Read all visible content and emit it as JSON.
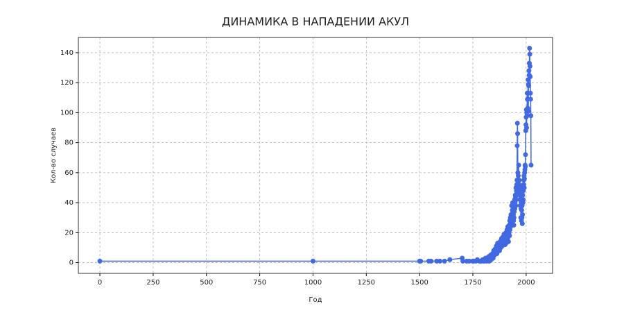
{
  "chart_data": {
    "type": "line",
    "title": "ДИНАМИКА В НАПАДЕНИИ АКУЛ",
    "x_label": "Год",
    "y_label": "Кол-во случаев",
    "color": "#4169e1",
    "grid": true,
    "markers": true,
    "x": [
      0,
      1000,
      1500,
      1505,
      1543,
      1554,
      1580,
      1595,
      1617,
      1642,
      1700,
      1703,
      1721,
      1733,
      1749,
      1755,
      1764,
      1771,
      1779,
      1785,
      1791,
      1796,
      1800,
      1803,
      1806,
      1809,
      1812,
      1815,
      1818,
      1821,
      1824,
      1827,
      1830,
      1833,
      1836,
      1839,
      1842,
      1845,
      1848,
      1851,
      1854,
      1857,
      1860,
      1863,
      1866,
      1869,
      1872,
      1875,
      1878,
      1881,
      1884,
      1887,
      1890,
      1893,
      1896,
      1898,
      1900,
      1901,
      1902,
      1903,
      1904,
      1905,
      1906,
      1907,
      1908,
      1909,
      1910,
      1911,
      1912,
      1913,
      1914,
      1915,
      1916,
      1917,
      1918,
      1919,
      1920,
      1921,
      1922,
      1923,
      1924,
      1925,
      1926,
      1927,
      1928,
      1929,
      1930,
      1931,
      1932,
      1933,
      1934,
      1935,
      1936,
      1937,
      1938,
      1939,
      1940,
      1941,
      1942,
      1943,
      1944,
      1945,
      1946,
      1947,
      1948,
      1949,
      1950,
      1951,
      1952,
      1953,
      1954,
      1955,
      1956,
      1957,
      1958,
      1959,
      1960,
      1961,
      1962,
      1963,
      1964,
      1965,
      1966,
      1967,
      1968,
      1969,
      1970,
      1971,
      1972,
      1973,
      1974,
      1975,
      1976,
      1977,
      1978,
      1979,
      1980,
      1981,
      1982,
      1983,
      1984,
      1985,
      1986,
      1987,
      1988,
      1989,
      1990,
      1991,
      1992,
      1993,
      1994,
      1995,
      1996,
      1997,
      1998,
      1999,
      2000,
      2001,
      2002,
      2003,
      2004,
      2005,
      2006,
      2007,
      2008,
      2009,
      2010,
      2011,
      2012,
      2013,
      2014,
      2015,
      2016,
      2017,
      2018,
      2019,
      2020,
      2021,
      2022,
      2023
    ],
    "values": [
      1,
      1,
      1,
      1,
      1,
      1,
      1,
      1,
      1,
      2,
      3,
      1,
      1,
      1,
      1,
      1,
      1,
      2,
      1,
      1,
      1,
      2,
      1,
      2,
      1,
      3,
      2,
      1,
      3,
      2,
      4,
      1,
      3,
      5,
      2,
      4,
      6,
      3,
      8,
      5,
      9,
      7,
      11,
      6,
      13,
      9,
      12,
      8,
      14,
      10,
      16,
      11,
      17,
      13,
      19,
      14,
      15,
      12,
      18,
      14,
      16,
      20,
      13,
      17,
      19,
      15,
      22,
      18,
      20,
      16,
      24,
      17,
      21,
      14,
      19,
      23,
      20,
      25,
      18,
      28,
      22,
      26,
      30,
      24,
      27,
      32,
      29,
      26,
      38,
      31,
      28,
      35,
      33,
      40,
      30,
      36,
      32,
      28,
      25,
      30,
      34,
      38,
      42,
      36,
      40,
      45,
      44,
      38,
      50,
      42,
      48,
      46,
      52,
      55,
      78,
      93,
      86,
      60,
      54,
      58,
      50,
      65,
      48,
      52,
      55,
      47,
      45,
      42,
      38,
      50,
      44,
      30,
      36,
      40,
      28,
      35,
      30,
      38,
      26,
      32,
      45,
      40,
      42,
      48,
      52,
      55,
      58,
      50,
      56,
      60,
      62,
      65,
      64,
      72,
      88,
      92,
      97,
      102,
      90,
      100,
      98,
      113,
      109,
      103,
      113,
      122,
      101,
      119,
      118,
      128,
      125,
      133,
      143,
      139,
      131,
      124,
      113,
      109,
      98,
      65
    ],
    "xlim": [
      -101,
      2124
    ],
    "ylim": [
      -7.15,
      150.15
    ],
    "xticks": [
      0,
      250,
      500,
      750,
      1000,
      1250,
      1500,
      1750,
      2000
    ],
    "yticks": [
      0,
      20,
      40,
      60,
      80,
      100,
      120,
      140
    ]
  }
}
